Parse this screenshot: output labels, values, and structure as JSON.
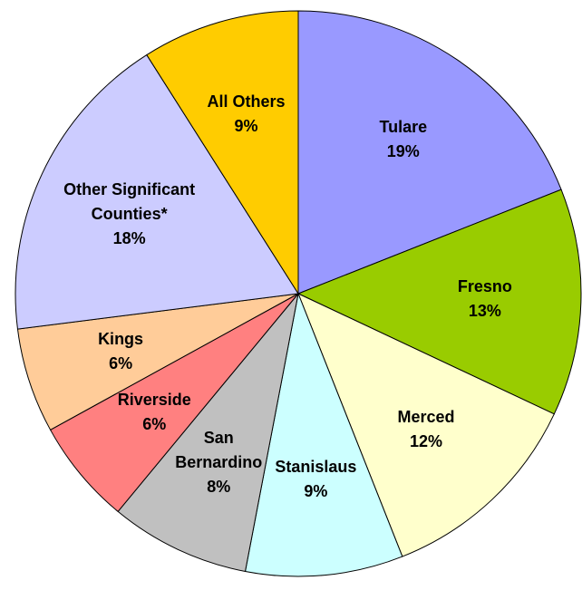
{
  "chart_data": {
    "type": "pie",
    "categories": [
      "Tulare",
      "Fresno",
      "Merced",
      "Stanislaus",
      "San Bernardino",
      "Riverside",
      "Kings",
      "Other Significant Counties*",
      "All Others"
    ],
    "values": [
      19,
      13,
      12,
      9,
      8,
      6,
      6,
      18,
      9
    ],
    "value_labels": [
      "19%",
      "13%",
      "12%",
      "9%",
      "8%",
      "6%",
      "6%",
      "18%",
      "9%"
    ],
    "colors": [
      "#9999ff",
      "#99cc00",
      "#ffffcc",
      "#ccffff",
      "#c0c0c0",
      "#ff8080",
      "#ffcc99",
      "#ccccff",
      "#ffcc00"
    ]
  }
}
